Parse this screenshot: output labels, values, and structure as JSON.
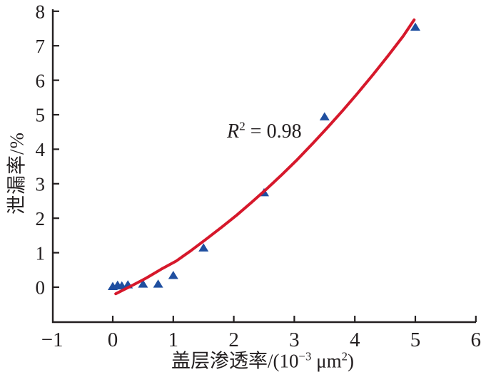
{
  "figure": {
    "y_axis_title": "泄漏率/%",
    "x_axis_title": {
      "part1": "盖层渗透率/(10",
      "sup1": "−3",
      "part2": " μm",
      "sup2": "2",
      "part3": ")"
    },
    "annotation": {
      "r_var": "R",
      "r_sup": "2",
      "r_rest": " = 0.98"
    }
  },
  "chart_data": {
    "type": "scatter",
    "title": "",
    "xlabel": "盖层渗透率/(10^−3 μm^2)",
    "ylabel": "泄漏率/%",
    "xlim": [
      -1,
      6
    ],
    "ylim": [
      -1,
      8
    ],
    "grid": false,
    "legend": "none",
    "annotation": {
      "text": "R^2 = 0.98",
      "x": 2.2,
      "y": 4.4
    },
    "x_ticks": [
      {
        "v": -1,
        "label": "−1"
      },
      {
        "v": 0,
        "label": "0"
      },
      {
        "v": 1,
        "label": "1"
      },
      {
        "v": 2,
        "label": "2"
      },
      {
        "v": 3,
        "label": "3"
      },
      {
        "v": 4,
        "label": "4"
      },
      {
        "v": 5,
        "label": "5"
      },
      {
        "v": 6,
        "label": "6"
      }
    ],
    "y_ticks": [
      {
        "v": 0,
        "label": "0"
      },
      {
        "v": 1,
        "label": "1"
      },
      {
        "v": 2,
        "label": "2"
      },
      {
        "v": 3,
        "label": "3"
      },
      {
        "v": 4,
        "label": "4"
      },
      {
        "v": 5,
        "label": "5"
      },
      {
        "v": 6,
        "label": "6"
      },
      {
        "v": 7,
        "label": "7"
      },
      {
        "v": 8,
        "label": "8"
      }
    ],
    "series": [
      {
        "name": "measured-leakage-points",
        "kind": "scatter",
        "marker": "triangle-up",
        "color": "#1f4fa0",
        "points": [
          [
            0.0,
            0.03
          ],
          [
            0.08,
            0.07
          ],
          [
            0.15,
            0.05
          ],
          [
            0.25,
            0.08
          ],
          [
            0.5,
            0.1
          ],
          [
            0.75,
            0.1
          ],
          [
            1.0,
            0.35
          ],
          [
            1.5,
            1.15
          ],
          [
            2.5,
            2.75
          ],
          [
            3.5,
            4.95
          ],
          [
            5.0,
            7.55
          ]
        ]
      },
      {
        "name": "quadratic-fit-curve",
        "kind": "line",
        "color": "#d6182b",
        "width": 4,
        "points": [
          [
            0.05,
            -0.19
          ],
          [
            0.3,
            0.03
          ],
          [
            0.55,
            0.26
          ],
          [
            0.8,
            0.52
          ],
          [
            1.05,
            0.76
          ],
          [
            1.3,
            1.07
          ],
          [
            1.55,
            1.4
          ],
          [
            1.8,
            1.74
          ],
          [
            2.05,
            2.09
          ],
          [
            2.3,
            2.47
          ],
          [
            2.55,
            2.86
          ],
          [
            2.8,
            3.27
          ],
          [
            3.05,
            3.7
          ],
          [
            3.3,
            4.16
          ],
          [
            3.55,
            4.63
          ],
          [
            3.8,
            5.12
          ],
          [
            4.05,
            5.63
          ],
          [
            4.3,
            6.16
          ],
          [
            4.55,
            6.71
          ],
          [
            4.8,
            7.28
          ],
          [
            4.98,
            7.75
          ]
        ]
      }
    ],
    "colors": {
      "axis": "#231f20",
      "tick_text": "#231f20",
      "point": "#1f4fa0",
      "curve": "#d6182b",
      "background": "#ffffff"
    }
  }
}
